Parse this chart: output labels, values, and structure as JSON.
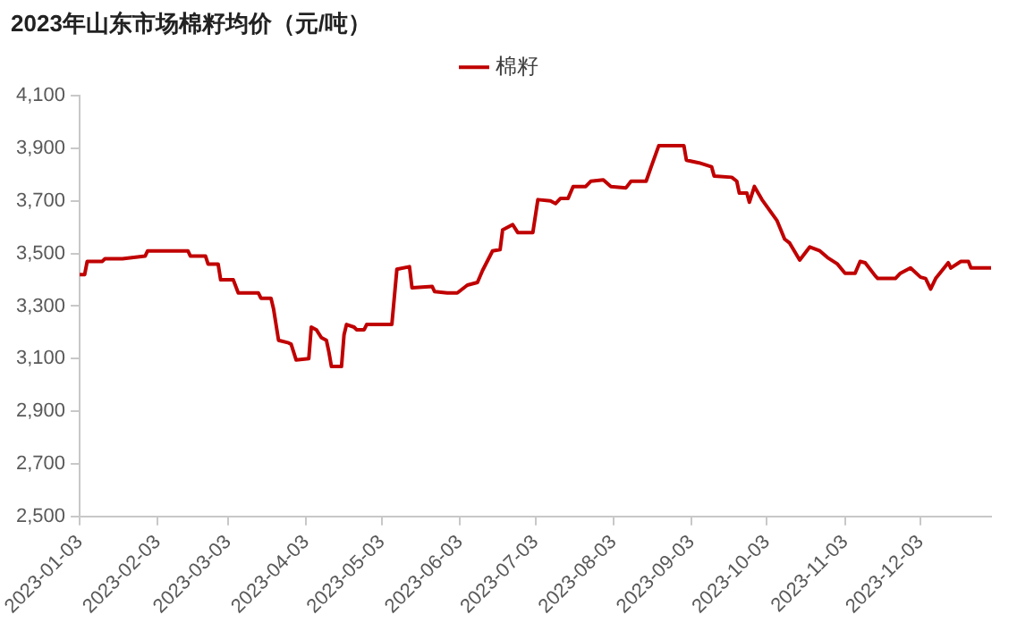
{
  "chart_data": {
    "type": "line",
    "title": "2023年山东市场棉籽均价（元/吨）",
    "xlim": [
      "2023-01-03",
      "2023-12-31"
    ],
    "xticks": [
      "2023-01-03",
      "2023-02-03",
      "2023-03-03",
      "2023-04-03",
      "2023-05-03",
      "2023-06-03",
      "2023-07-03",
      "2023-08-03",
      "2023-09-03",
      "2023-10-03",
      "2023-11-03",
      "2023-12-03"
    ],
    "ylim": [
      2500,
      4100
    ],
    "yticks": [
      {
        "value": 2500,
        "label": "2,500"
      },
      {
        "value": 2700,
        "label": "2,700"
      },
      {
        "value": 2900,
        "label": "2,900"
      },
      {
        "value": 3100,
        "label": "3,100"
      },
      {
        "value": 3300,
        "label": "3,300"
      },
      {
        "value": 3500,
        "label": "3,500"
      },
      {
        "value": 3700,
        "label": "3,700"
      },
      {
        "value": 3900,
        "label": "3,900"
      },
      {
        "value": 4100,
        "label": "4,100"
      }
    ],
    "grid": false,
    "legend": "top",
    "marker": "none",
    "line_style": "solid",
    "x": [
      "2023-01-03",
      "2023-01-05",
      "2023-01-06",
      "2023-01-12",
      "2023-01-13",
      "2023-01-20",
      "2023-01-29",
      "2023-01-30",
      "2023-02-15",
      "2023-02-16",
      "2023-02-22",
      "2023-02-23",
      "2023-02-27",
      "2023-02-28",
      "2023-03-05",
      "2023-03-07",
      "2023-03-15",
      "2023-03-16",
      "2023-03-20",
      "2023-03-21",
      "2023-03-23",
      "2023-03-27",
      "2023-03-28",
      "2023-03-30",
      "2023-04-04",
      "2023-04-05",
      "2023-04-07",
      "2023-04-09",
      "2023-04-11",
      "2023-04-12",
      "2023-04-13",
      "2023-04-17",
      "2023-04-18",
      "2023-04-19",
      "2023-04-22",
      "2023-04-23",
      "2023-04-26",
      "2023-04-27",
      "2023-05-07",
      "2023-05-09",
      "2023-05-14",
      "2023-05-15",
      "2023-05-23",
      "2023-05-24",
      "2023-05-29",
      "2023-06-02",
      "2023-06-06",
      "2023-06-10",
      "2023-06-12",
      "2023-06-16",
      "2023-06-19",
      "2023-06-20",
      "2023-06-24",
      "2023-06-26",
      "2023-07-02",
      "2023-07-04",
      "2023-07-09",
      "2023-07-11",
      "2023-07-13",
      "2023-07-16",
      "2023-07-18",
      "2023-07-23",
      "2023-07-25",
      "2023-07-30",
      "2023-08-02",
      "2023-08-08",
      "2023-08-10",
      "2023-08-16",
      "2023-08-18",
      "2023-08-21",
      "2023-08-31",
      "2023-09-01",
      "2023-09-06",
      "2023-09-11",
      "2023-09-12",
      "2023-09-19",
      "2023-09-21",
      "2023-09-22",
      "2023-09-25",
      "2023-09-26",
      "2023-09-28",
      "2023-10-01",
      "2023-10-07",
      "2023-10-10",
      "2023-10-12",
      "2023-10-16",
      "2023-10-20",
      "2023-10-24",
      "2023-10-27",
      "2023-10-31",
      "2023-11-03",
      "2023-11-07",
      "2023-11-09",
      "2023-11-11",
      "2023-11-15",
      "2023-11-16",
      "2023-11-23",
      "2023-11-25",
      "2023-11-29",
      "2023-12-03",
      "2023-12-05",
      "2023-12-07",
      "2023-12-09",
      "2023-12-14",
      "2023-12-15",
      "2023-12-19",
      "2023-12-22",
      "2023-12-23",
      "2023-12-31"
    ],
    "series": [
      {
        "name": "棉籽",
        "color": "#c00000",
        "values": [
          3420,
          3420,
          3470,
          3470,
          3480,
          3480,
          3490,
          3510,
          3510,
          3490,
          3490,
          3460,
          3460,
          3400,
          3400,
          3350,
          3350,
          3330,
          3330,
          3290,
          3170,
          3160,
          3155,
          3095,
          3100,
          3220,
          3210,
          3180,
          3170,
          3125,
          3070,
          3070,
          3190,
          3230,
          3220,
          3210,
          3210,
          3230,
          3230,
          3440,
          3450,
          3370,
          3375,
          3355,
          3350,
          3350,
          3380,
          3390,
          3435,
          3510,
          3515,
          3590,
          3610,
          3580,
          3580,
          3705,
          3700,
          3690,
          3710,
          3710,
          3755,
          3755,
          3775,
          3780,
          3755,
          3750,
          3775,
          3775,
          3830,
          3910,
          3910,
          3855,
          3845,
          3830,
          3795,
          3790,
          3775,
          3730,
          3730,
          3695,
          3755,
          3705,
          3625,
          3555,
          3540,
          3475,
          3525,
          3510,
          3485,
          3460,
          3425,
          3425,
          3470,
          3465,
          3415,
          3405,
          3405,
          3425,
          3445,
          3410,
          3405,
          3365,
          3405,
          3465,
          3445,
          3470,
          3470,
          3445,
          3445
        ]
      }
    ]
  }
}
